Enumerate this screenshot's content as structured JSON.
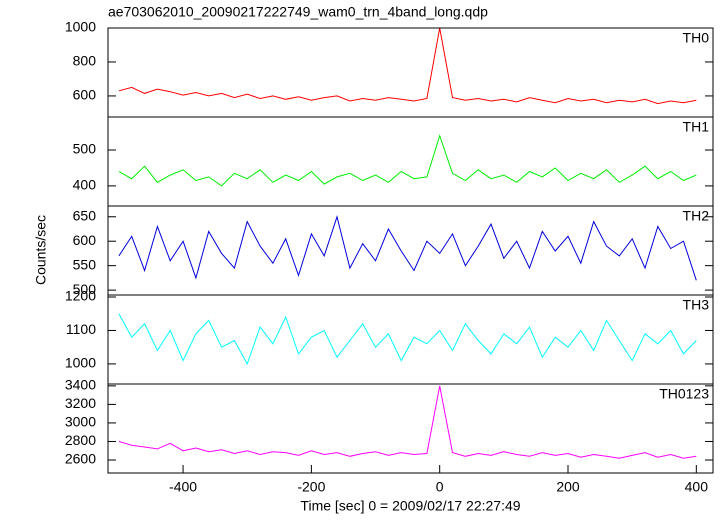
{
  "chart_data": [
    {
      "type": "line",
      "title": "ae703062010_20090217222749_wam0_trn_4band_long.qdp",
      "x": [
        -500,
        -480,
        -460,
        -440,
        -420,
        -400,
        -380,
        -360,
        -340,
        -320,
        -300,
        -280,
        -260,
        -240,
        -220,
        -200,
        -180,
        -160,
        -140,
        -120,
        -100,
        -80,
        -60,
        -40,
        -20,
        0,
        20,
        40,
        60,
        80,
        100,
        120,
        140,
        160,
        180,
        200,
        220,
        240,
        260,
        280,
        300,
        320,
        340,
        360,
        380,
        400
      ],
      "series": [
        {
          "name": "TH0",
          "color": "#ff0000",
          "values": [
            630,
            650,
            615,
            640,
            625,
            605,
            620,
            600,
            615,
            590,
            610,
            585,
            600,
            580,
            595,
            575,
            590,
            600,
            570,
            585,
            575,
            590,
            580,
            570,
            585,
            1000,
            590,
            575,
            585,
            570,
            580,
            565,
            590,
            575,
            560,
            585,
            570,
            580,
            560,
            575,
            565,
            580,
            555,
            570,
            560,
            575
          ]
        }
      ],
      "xlim": [
        -517,
        426
      ],
      "ylim": [
        476,
        1000
      ],
      "yticks": [
        600,
        800,
        1000
      ]
    },
    {
      "type": "line",
      "x": [
        -500,
        -480,
        -460,
        -440,
        -420,
        -400,
        -380,
        -360,
        -340,
        -320,
        -300,
        -280,
        -260,
        -240,
        -220,
        -200,
        -180,
        -160,
        -140,
        -120,
        -100,
        -80,
        -60,
        -40,
        -20,
        0,
        20,
        40,
        60,
        80,
        100,
        120,
        140,
        160,
        180,
        200,
        220,
        240,
        260,
        280,
        300,
        320,
        340,
        360,
        380,
        400
      ],
      "series": [
        {
          "name": "TH1",
          "color": "#00ee00",
          "values": [
            440,
            420,
            455,
            410,
            430,
            445,
            415,
            425,
            400,
            435,
            420,
            445,
            410,
            430,
            415,
            440,
            405,
            425,
            435,
            415,
            430,
            410,
            440,
            420,
            425,
            540,
            435,
            415,
            445,
            420,
            430,
            410,
            440,
            425,
            450,
            415,
            435,
            420,
            445,
            410,
            430,
            455,
            420,
            440,
            415,
            430
          ]
        }
      ],
      "xlim": [
        -517,
        426
      ],
      "ylim": [
        344,
        592
      ],
      "yticks": [
        400,
        500
      ]
    },
    {
      "type": "line",
      "ylabel": "Counts/sec",
      "x": [
        -500,
        -480,
        -460,
        -440,
        -420,
        -400,
        -380,
        -360,
        -340,
        -320,
        -300,
        -280,
        -260,
        -240,
        -220,
        -200,
        -180,
        -160,
        -140,
        -120,
        -100,
        -80,
        -60,
        -40,
        -20,
        0,
        20,
        40,
        60,
        80,
        100,
        120,
        140,
        160,
        180,
        200,
        220,
        240,
        260,
        280,
        300,
        320,
        340,
        360,
        380,
        400
      ],
      "series": [
        {
          "name": "TH2",
          "color": "#0000dd",
          "values": [
            570,
            610,
            540,
            630,
            560,
            600,
            525,
            620,
            575,
            545,
            640,
            590,
            555,
            605,
            530,
            615,
            570,
            650,
            545,
            595,
            560,
            625,
            580,
            540,
            600,
            575,
            615,
            550,
            590,
            635,
            565,
            600,
            545,
            620,
            580,
            610,
            555,
            640,
            590,
            570,
            605,
            545,
            630,
            585,
            600,
            520
          ]
        }
      ],
      "xlim": [
        -517,
        426
      ],
      "ylim": [
        490,
        672
      ],
      "yticks": [
        500,
        550,
        600,
        650
      ]
    },
    {
      "type": "line",
      "x": [
        -500,
        -480,
        -460,
        -440,
        -420,
        -400,
        -380,
        -360,
        -340,
        -320,
        -300,
        -280,
        -260,
        -240,
        -220,
        -200,
        -180,
        -160,
        -140,
        -120,
        -100,
        -80,
        -60,
        -40,
        -20,
        0,
        20,
        40,
        60,
        80,
        100,
        120,
        140,
        160,
        180,
        200,
        220,
        240,
        260,
        280,
        300,
        320,
        340,
        360,
        380,
        400
      ],
      "series": [
        {
          "name": "TH3",
          "color": "#00ffff",
          "values": [
            1150,
            1080,
            1120,
            1040,
            1100,
            1010,
            1090,
            1130,
            1050,
            1070,
            1000,
            1110,
            1060,
            1140,
            1030,
            1080,
            1100,
            1020,
            1070,
            1120,
            1050,
            1090,
            1010,
            1080,
            1060,
            1100,
            1040,
            1120,
            1070,
            1030,
            1090,
            1060,
            1110,
            1020,
            1080,
            1050,
            1100,
            1040,
            1130,
            1070,
            1010,
            1090,
            1060,
            1100,
            1030,
            1070
          ]
        }
      ],
      "xlim": [
        -517,
        426
      ],
      "ylim": [
        940,
        1206
      ],
      "yticks": [
        1000,
        1100,
        1200
      ]
    },
    {
      "type": "line",
      "xlabel": "Time [sec] 0 = 2009/02/17 22:27:49",
      "x": [
        -500,
        -480,
        -460,
        -440,
        -420,
        -400,
        -380,
        -360,
        -340,
        -320,
        -300,
        -280,
        -260,
        -240,
        -220,
        -200,
        -180,
        -160,
        -140,
        -120,
        -100,
        -80,
        -60,
        -40,
        -20,
        0,
        20,
        40,
        60,
        80,
        100,
        120,
        140,
        160,
        180,
        200,
        220,
        240,
        260,
        280,
        300,
        320,
        340,
        360,
        380,
        400
      ],
      "series": [
        {
          "name": "TH0123",
          "color": "#ff00ff",
          "values": [
            2800,
            2760,
            2740,
            2720,
            2780,
            2700,
            2730,
            2690,
            2710,
            2670,
            2700,
            2660,
            2690,
            2680,
            2650,
            2700,
            2660,
            2680,
            2640,
            2670,
            2690,
            2650,
            2680,
            2660,
            2670,
            3400,
            2680,
            2640,
            2670,
            2650,
            2690,
            2660,
            2640,
            2680,
            2650,
            2670,
            2630,
            2660,
            2640,
            2620,
            2650,
            2680,
            2630,
            2660,
            2620,
            2640
          ]
        }
      ],
      "xlim": [
        -517,
        426
      ],
      "ylim": [
        2460,
        3420
      ],
      "yticks": [
        2600,
        2800,
        3000,
        3200,
        3400
      ],
      "xticks": [
        -400,
        -200,
        0,
        200,
        400
      ]
    }
  ]
}
